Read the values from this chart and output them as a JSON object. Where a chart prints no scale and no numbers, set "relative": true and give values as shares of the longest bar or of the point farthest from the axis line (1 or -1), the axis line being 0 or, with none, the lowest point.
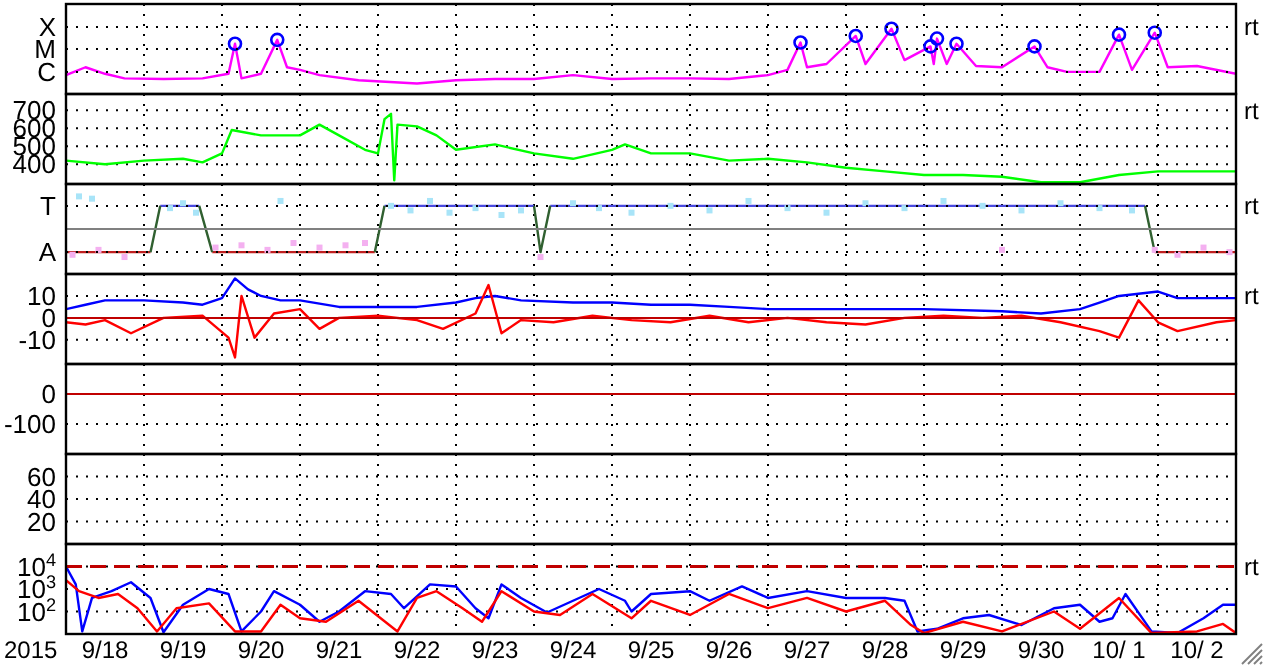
{
  "chart_data": [
    {
      "type": "line",
      "relative": true,
      "xlim": [
        "2015-09-18",
        "2015-10-03"
      ],
      "ref_lines": [
        {
          "axis": "y",
          "value": 0.34,
          "label": "C",
          "color": "#000000",
          "line_style": "dotted"
        },
        {
          "axis": "y",
          "value": 0.69,
          "label": "M",
          "color": "#000000",
          "line_style": "dotted"
        },
        {
          "axis": "y",
          "value": 1.03,
          "label": "X",
          "color": "#000000",
          "line_style": "dotted"
        }
      ],
      "xticks": [
        {
          "value": "2015-09-19",
          "label": null
        },
        {
          "value": "2015-09-20",
          "label": null
        },
        {
          "value": "2015-09-21",
          "label": null
        },
        {
          "value": "2015-09-22",
          "label": null
        },
        {
          "value": "2015-09-23",
          "label": null
        },
        {
          "value": "2015-09-24",
          "label": null
        },
        {
          "value": "2015-09-25",
          "label": null
        },
        {
          "value": "2015-09-26",
          "label": null
        },
        {
          "value": "2015-09-27",
          "label": null
        },
        {
          "value": "2015-09-28",
          "label": null
        },
        {
          "value": "2015-09-29",
          "label": null
        },
        {
          "value": "2015-09-30",
          "label": null
        },
        {
          "value": "2015-10-01",
          "label": null
        },
        {
          "value": "2015-10-02",
          "label": null
        }
      ],
      "tick_labels": "y",
      "grid": "x",
      "annotations": [
        "rt"
      ],
      "series": [
        {
          "color": "#ff00ff",
          "x": [
            "2015-09-18T00:00",
            "2015-09-18T06:00",
            "2015-09-18T12:00",
            "2015-09-18T18:00",
            "2015-09-19T06:00",
            "2015-09-19T18:00",
            "2015-09-20T02:00",
            "2015-09-20T04:00",
            "2015-09-20T06:00",
            "2015-09-20T12:00",
            "2015-09-20T17:00",
            "2015-09-20T20:00",
            "2015-09-21T00:00",
            "2015-09-21T06:00",
            "2015-09-21T18:00",
            "2015-09-22T12:00",
            "2015-09-23T00:00",
            "2015-09-23T12:00",
            "2015-09-24T00:00",
            "2015-09-24T12:00",
            "2015-09-25T00:00",
            "2015-09-25T12:00",
            "2015-09-26T00:00",
            "2015-09-26T12:00",
            "2015-09-27T00:00",
            "2015-09-27T06:00",
            "2015-09-27T10:00",
            "2015-09-27T12:00",
            "2015-09-27T18:00",
            "2015-09-28T03:00",
            "2015-09-28T06:00",
            "2015-09-28T14:00",
            "2015-09-28T18:00",
            "2015-09-29T02:00",
            "2015-09-29T03:00",
            "2015-09-29T04:00",
            "2015-09-29T07:00",
            "2015-09-29T10:00",
            "2015-09-29T16:00",
            "2015-09-30T00:00",
            "2015-09-30T10:00",
            "2015-09-30T14:00",
            "2015-09-30T20:00",
            "2015-10-01T06:00",
            "2015-10-01T12:00",
            "2015-10-01T16:00",
            "2015-10-01T23:00",
            "2015-10-02T03:00",
            "2015-10-02T12:00",
            "2015-10-03T00:00"
          ],
          "values": [
            0.29,
            0.41,
            0.31,
            0.24,
            0.23,
            0.24,
            0.31,
            0.77,
            0.24,
            0.31,
            0.83,
            0.41,
            0.37,
            0.29,
            0.21,
            0.16,
            0.21,
            0.23,
            0.23,
            0.29,
            0.23,
            0.24,
            0.24,
            0.23,
            0.29,
            0.37,
            0.79,
            0.41,
            0.46,
            0.89,
            0.46,
            1,
            0.52,
            0.73,
            0.46,
            0.85,
            0.46,
            0.77,
            0.43,
            0.41,
            0.73,
            0.41,
            0.34,
            0.34,
            0.91,
            0.37,
            0.94,
            0.41,
            0.43,
            0.31
          ]
        },
        {
          "type": "scatter",
          "marker": "circle",
          "color": "#0000ff",
          "x": [
            "2015-09-20T04:00",
            "2015-09-20T17:00",
            "2015-09-27T10:00",
            "2015-09-28T03:00",
            "2015-09-28T14:00",
            "2015-09-29T02:00",
            "2015-09-29T04:00",
            "2015-09-29T10:00",
            "2015-09-30T10:00",
            "2015-10-01T12:00",
            "2015-10-01T23:00"
          ],
          "values": [
            0.77,
            0.83,
            0.79,
            0.89,
            1,
            0.73,
            0.85,
            0.77,
            0.73,
            0.91,
            0.94
          ]
        }
      ]
    },
    {
      "type": "line",
      "xlim": [
        "2015-09-18",
        "2015-10-03"
      ],
      "ylim": [
        290,
        790
      ],
      "yticks": [
        400,
        500,
        600,
        700
      ],
      "xticks": [
        {
          "value": "2015-09-19",
          "label": null
        },
        {
          "value": "2015-09-20",
          "label": null
        },
        {
          "value": "2015-09-21",
          "label": null
        },
        {
          "value": "2015-09-22",
          "label": null
        },
        {
          "value": "2015-09-23",
          "label": null
        },
        {
          "value": "2015-09-24",
          "label": null
        },
        {
          "value": "2015-09-25",
          "label": null
        },
        {
          "value": "2015-09-26",
          "label": null
        },
        {
          "value": "2015-09-27",
          "label": null
        },
        {
          "value": "2015-09-28",
          "label": null
        },
        {
          "value": "2015-09-29",
          "label": null
        },
        {
          "value": "2015-09-30",
          "label": null
        },
        {
          "value": "2015-10-01",
          "label": null
        },
        {
          "value": "2015-10-02",
          "label": null
        }
      ],
      "tick_labels": "y",
      "grid": true,
      "annotations": [
        "rt"
      ],
      "series": [
        {
          "color": "#00ff00",
          "x": [
            "2015-09-18T00:00",
            "2015-09-18T12:00",
            "2015-09-19T00:00",
            "2015-09-19T12:00",
            "2015-09-19T18:00",
            "2015-09-20T00:00",
            "2015-09-20T03:00",
            "2015-09-20T12:00",
            "2015-09-21T00:00",
            "2015-09-21T06:00",
            "2015-09-21T12:00",
            "2015-09-21T20:00",
            "2015-09-22T00:00",
            "2015-09-22T02:00",
            "2015-09-22T04:00",
            "2015-09-22T05:00",
            "2015-09-22T06:00",
            "2015-09-22T12:00",
            "2015-09-22T18:00",
            "2015-09-23T00:00",
            "2015-09-23T12:00",
            "2015-09-24T00:00",
            "2015-09-24T12:00",
            "2015-09-25T00:00",
            "2015-09-25T04:00",
            "2015-09-25T12:00",
            "2015-09-26T00:00",
            "2015-09-26T12:00",
            "2015-09-27T00:00",
            "2015-09-27T12:00",
            "2015-09-28T00:00",
            "2015-09-28T12:00",
            "2015-09-29T00:00",
            "2015-09-29T12:00",
            "2015-09-30T00:00",
            "2015-09-30T12:00",
            "2015-10-01T00:00",
            "2015-10-01T12:00",
            "2015-10-02T00:00",
            "2015-10-02T12:00",
            "2015-10-03T00:00"
          ],
          "values": [
            420,
            400,
            420,
            430,
            410,
            460,
            590,
            560,
            560,
            620,
            560,
            480,
            460,
            650,
            680,
            310,
            620,
            610,
            560,
            480,
            510,
            460,
            430,
            480,
            510,
            460,
            460,
            420,
            430,
            410,
            380,
            360,
            340,
            340,
            330,
            300,
            300,
            340,
            360,
            360,
            360
          ]
        }
      ]
    },
    {
      "type": "line",
      "relative": true,
      "xlim": [
        "2015-09-18",
        "2015-10-03"
      ],
      "xticks": [
        {
          "value": "2015-09-19",
          "label": null
        },
        {
          "value": "2015-09-20",
          "label": null
        },
        {
          "value": "2015-09-21",
          "label": null
        },
        {
          "value": "2015-09-22",
          "label": null
        },
        {
          "value": "2015-09-23",
          "label": null
        },
        {
          "value": "2015-09-24",
          "label": null
        },
        {
          "value": "2015-09-25",
          "label": null
        },
        {
          "value": "2015-09-26",
          "label": null
        },
        {
          "value": "2015-09-27",
          "label": null
        },
        {
          "value": "2015-09-28",
          "label": null
        },
        {
          "value": "2015-09-29",
          "label": null
        },
        {
          "value": "2015-09-30",
          "label": null
        },
        {
          "value": "2015-10-01",
          "label": null
        },
        {
          "value": "2015-10-02",
          "label": null
        }
      ],
      "tick_labels": "y",
      "grid": "x",
      "annotations": [
        "rt"
      ],
      "ref_lines": [
        {
          "axis": "y",
          "value": 0,
          "label": null,
          "color": "#808080"
        },
        {
          "axis": "y",
          "value": -0.71,
          "label": "A",
          "color": "#000000",
          "line_style": "dotted"
        },
        {
          "axis": "y",
          "value": 0.71,
          "label": "T",
          "color": "#000000",
          "line_style": "dotted"
        }
      ],
      "series": [
        {
          "type": "scatter",
          "marker": "square",
          "color": "#a8e4f8",
          "x": [
            "2015-09-18T04:00",
            "2015-09-18T08:00",
            "2015-09-19T08:00",
            "2015-09-19T12:00",
            "2015-09-19T16:00",
            "2015-09-20T18:00",
            "2015-09-22T04:00",
            "2015-09-22T10:00",
            "2015-09-22T16:00",
            "2015-09-22T22:00",
            "2015-09-23T06:00",
            "2015-09-23T14:00",
            "2015-09-23T20:00",
            "2015-09-24T12:00",
            "2015-09-24T20:00",
            "2015-09-25T06:00",
            "2015-09-25T18:00",
            "2015-09-26T06:00",
            "2015-09-26T18:00",
            "2015-09-27T06:00",
            "2015-09-27T18:00",
            "2015-09-28T06:00",
            "2015-09-28T18:00",
            "2015-09-29T06:00",
            "2015-09-29T18:00",
            "2015-09-30T06:00",
            "2015-09-30T18:00",
            "2015-10-01T06:00",
            "2015-10-01T16:00"
          ],
          "values": [
            1,
            0.93,
            0.64,
            0.79,
            0.5,
            0.86,
            0.71,
            0.57,
            0.86,
            0.5,
            0.64,
            0.43,
            0.57,
            0.79,
            0.64,
            0.5,
            0.71,
            0.57,
            0.86,
            0.64,
            0.5,
            0.79,
            0.64,
            0.86,
            0.71,
            0.57,
            0.79,
            0.64,
            0.57
          ]
        },
        {
          "type": "scatter",
          "marker": "square",
          "color": "#f4b0f0",
          "x": [
            "2015-09-18T02:00",
            "2015-09-18T10:00",
            "2015-09-18T18:00",
            "2015-09-19T22:00",
            "2015-09-20T06:00",
            "2015-09-20T14:00",
            "2015-09-20T22:00",
            "2015-09-21T06:00",
            "2015-09-21T14:00",
            "2015-09-21T20:00",
            "2015-09-24T02:00",
            "2015-09-30T00:00",
            "2015-10-01T23:00",
            "2015-10-02T06:00",
            "2015-10-02T14:00",
            "2015-10-02T22:00"
          ],
          "values": [
            -0.79,
            -0.64,
            -0.86,
            -0.57,
            -0.5,
            -0.64,
            -0.43,
            -0.57,
            -0.5,
            -0.43,
            -0.86,
            -0.64,
            -0.64,
            -0.79,
            -0.57,
            -0.71
          ]
        },
        {
          "color": "#c02020",
          "x": [
            "2015-09-18T00:00",
            "2015-09-19T02:00",
            "2015-09-19T12:00",
            "2015-09-19T21:00",
            "2015-09-21T23:00",
            "2015-09-30T00:00",
            "2015-10-01T23:00",
            "2015-10-03T00:00"
          ],
          "values": [
            -0.71,
            -0.71,
            null,
            -0.71,
            -0.71,
            null,
            -0.71,
            -0.71
          ]
        },
        {
          "color": "#4a4ae0",
          "x": [
            "2015-09-19T05:00",
            "2015-09-19T17:00",
            "2015-09-20T12:00",
            "2015-09-22T02:00",
            "2015-09-24T00:00",
            "2015-09-24T03:00",
            "2015-09-24T05:00",
            "2015-10-01T20:00"
          ],
          "values": [
            0.71,
            0.71,
            null,
            0.71,
            0.71,
            null,
            0.71,
            0.71
          ]
        },
        {
          "color": "#306030",
          "x": [
            "2015-09-19T02:00",
            "2015-09-19T05:00",
            "2015-09-19T10:00",
            "2015-09-19T17:00",
            "2015-09-19T21:00",
            "2015-09-20T12:00",
            "2015-09-21T23:00",
            "2015-09-22T02:00",
            "2015-09-23T00:00",
            "2015-09-24T00:00",
            "2015-09-24T02:00",
            "2015-09-24T05:00",
            "2015-09-30T00:00",
            "2015-10-01T20:00",
            "2015-10-01T23:00"
          ],
          "values": [
            -0.71,
            0.71,
            null,
            0.71,
            -0.71,
            null,
            -0.71,
            0.71,
            null,
            0.71,
            -0.71,
            0.71,
            null,
            0.71,
            -0.71
          ]
        }
      ]
    },
    {
      "type": "line",
      "xlim": [
        "2015-09-18",
        "2015-10-03"
      ],
      "ylim": [
        -21,
        20
      ],
      "yticks": [
        -10,
        0,
        10
      ],
      "xticks": [
        {
          "value": "2015-09-19",
          "label": null
        },
        {
          "value": "2015-09-20",
          "label": null
        },
        {
          "value": "2015-09-21",
          "label": null
        },
        {
          "value": "2015-09-22",
          "label": null
        },
        {
          "value": "2015-09-23",
          "label": null
        },
        {
          "value": "2015-09-24",
          "label": null
        },
        {
          "value": "2015-09-25",
          "label": null
        },
        {
          "value": "2015-09-26",
          "label": null
        },
        {
          "value": "2015-09-27",
          "label": null
        },
        {
          "value": "2015-09-28",
          "label": null
        },
        {
          "value": "2015-09-29",
          "label": null
        },
        {
          "value": "2015-09-30",
          "label": null
        },
        {
          "value": "2015-10-01",
          "label": null
        },
        {
          "value": "2015-10-02",
          "label": null
        }
      ],
      "tick_labels": "y",
      "grid": true,
      "annotations": [
        "rt"
      ],
      "ref_lines": [
        {
          "axis": "y",
          "value": 0,
          "label": null,
          "color": "#c00000"
        }
      ],
      "series": [
        {
          "color": "#0000ff",
          "x": [
            "2015-09-18T00:00",
            "2015-09-18T06:00",
            "2015-09-18T12:00",
            "2015-09-19T00:00",
            "2015-09-19T12:00",
            "2015-09-19T18:00",
            "2015-09-20T00:00",
            "2015-09-20T04:00",
            "2015-09-20T08:00",
            "2015-09-20T12:00",
            "2015-09-20T18:00",
            "2015-09-21T00:00",
            "2015-09-21T12:00",
            "2015-09-22T00:00",
            "2015-09-22T12:00",
            "2015-09-23T00:00",
            "2015-09-23T06:00",
            "2015-09-23T12:00",
            "2015-09-23T20:00",
            "2015-09-24T12:00",
            "2015-09-25T00:00",
            "2015-09-25T12:00",
            "2015-09-26T00:00",
            "2015-09-26T12:00",
            "2015-09-27T00:00",
            "2015-09-28T00:00",
            "2015-09-29T00:00",
            "2015-09-30T00:00",
            "2015-09-30T12:00",
            "2015-10-01T00:00",
            "2015-10-01T06:00",
            "2015-10-01T12:00",
            "2015-10-02T00:00",
            "2015-10-02T06:00",
            "2015-10-03T00:00"
          ],
          "values": [
            4,
            6,
            8,
            8,
            7,
            6,
            9,
            18,
            13,
            10,
            8,
            8,
            5,
            5,
            5,
            7,
            9,
            10,
            8,
            7,
            7,
            6,
            6,
            5,
            4,
            4,
            4,
            3,
            2,
            4,
            7,
            10,
            12,
            9,
            9
          ]
        },
        {
          "color": "#ff0000",
          "x": [
            "2015-09-18T00:00",
            "2015-09-18T06:00",
            "2015-09-18T12:00",
            "2015-09-18T20:00",
            "2015-09-19T06:00",
            "2015-09-19T18:00",
            "2015-09-20T02:00",
            "2015-09-20T04:00",
            "2015-09-20T06:00",
            "2015-09-20T10:00",
            "2015-09-20T16:00",
            "2015-09-21T00:00",
            "2015-09-21T06:00",
            "2015-09-21T12:00",
            "2015-09-22T00:00",
            "2015-09-22T12:00",
            "2015-09-22T20:00",
            "2015-09-23T06:00",
            "2015-09-23T10:00",
            "2015-09-23T14:00",
            "2015-09-23T20:00",
            "2015-09-24T06:00",
            "2015-09-24T18:00",
            "2015-09-25T06:00",
            "2015-09-25T18:00",
            "2015-09-26T06:00",
            "2015-09-26T18:00",
            "2015-09-27T06:00",
            "2015-09-27T18:00",
            "2015-09-28T06:00",
            "2015-09-28T18:00",
            "2015-09-29T06:00",
            "2015-09-29T18:00",
            "2015-09-30T06:00",
            "2015-09-30T18:00",
            "2015-10-01T06:00",
            "2015-10-01T12:00",
            "2015-10-01T18:00",
            "2015-10-02T00:00",
            "2015-10-02T06:00",
            "2015-10-02T18:00",
            "2015-10-03T00:00"
          ],
          "values": [
            -2,
            -3,
            -1,
            -7,
            0,
            1,
            -9,
            -18,
            10,
            -9,
            2,
            4,
            -5,
            0,
            1,
            -1,
            -5,
            2,
            15,
            -7,
            -1,
            -2,
            1,
            -1,
            -2,
            1,
            -2,
            0,
            -2,
            -3,
            0,
            1,
            0,
            1,
            -2,
            -6,
            -9,
            8,
            -2,
            -6,
            -2,
            -1
          ]
        }
      ]
    },
    {
      "type": "line",
      "xlim": [
        "2015-09-18",
        "2015-10-03"
      ],
      "ylim": [
        -200,
        100
      ],
      "yticks": [
        -100,
        0
      ],
      "xticks": [
        {
          "value": "2015-09-19",
          "label": null
        },
        {
          "value": "2015-09-20",
          "label": null
        },
        {
          "value": "2015-09-21",
          "label": null
        },
        {
          "value": "2015-09-22",
          "label": null
        },
        {
          "value": "2015-09-23",
          "label": null
        },
        {
          "value": "2015-09-24",
          "label": null
        },
        {
          "value": "2015-09-25",
          "label": null
        },
        {
          "value": "2015-09-26",
          "label": null
        },
        {
          "value": "2015-09-27",
          "label": null
        },
        {
          "value": "2015-09-28",
          "label": null
        },
        {
          "value": "2015-09-29",
          "label": null
        },
        {
          "value": "2015-09-30",
          "label": null
        },
        {
          "value": "2015-10-01",
          "label": null
        },
        {
          "value": "2015-10-02",
          "label": null
        }
      ],
      "tick_labels": "y",
      "grid": true,
      "ref_lines": [
        {
          "axis": "y",
          "value": 0,
          "label": null,
          "color": "#c00000"
        }
      ]
    },
    {
      "type": "line",
      "xlim": [
        "2015-09-18",
        "2015-10-03"
      ],
      "ylim": [
        0,
        80
      ],
      "yticks": [
        20,
        40,
        60
      ],
      "xticks": [
        {
          "value": "2015-09-19",
          "label": null
        },
        {
          "value": "2015-09-20",
          "label": null
        },
        {
          "value": "2015-09-21",
          "label": null
        },
        {
          "value": "2015-09-22",
          "label": null
        },
        {
          "value": "2015-09-23",
          "label": null
        },
        {
          "value": "2015-09-24",
          "label": null
        },
        {
          "value": "2015-09-25",
          "label": null
        },
        {
          "value": "2015-09-26",
          "label": null
        },
        {
          "value": "2015-09-27",
          "label": null
        },
        {
          "value": "2015-09-28",
          "label": null
        },
        {
          "value": "2015-09-29",
          "label": null
        },
        {
          "value": "2015-09-30",
          "label": null
        },
        {
          "value": "2015-10-01",
          "label": null
        },
        {
          "value": "2015-10-02",
          "label": null
        }
      ],
      "tick_labels": "y",
      "grid": true
    },
    {
      "type": "line",
      "log": "y",
      "xlim": [
        "2015-09-18",
        "2015-10-03"
      ],
      "ylim": [
        10,
        100000
      ],
      "yticks": [
        {
          "value": 100,
          "label": "10$^{2}$"
        },
        {
          "value": 1000,
          "label": "10$^{3}$"
        },
        {
          "value": 10000,
          "label": "10$^{4}$"
        }
      ],
      "xticks": [
        {
          "value": "2015-09-18T12:00",
          "label": "9/18"
        },
        {
          "value": "2015-09-19",
          "label": null
        },
        {
          "value": "2015-09-19T12:00",
          "label": "9/19"
        },
        {
          "value": "2015-09-20",
          "label": null
        },
        {
          "value": "2015-09-20T12:00",
          "label": "9/20"
        },
        {
          "value": "2015-09-21",
          "label": null
        },
        {
          "value": "2015-09-21T12:00",
          "label": "9/21"
        },
        {
          "value": "2015-09-22",
          "label": null
        },
        {
          "value": "2015-09-22T12:00",
          "label": "9/22"
        },
        {
          "value": "2015-09-23",
          "label": null
        },
        {
          "value": "2015-09-23T12:00",
          "label": "9/23"
        },
        {
          "value": "2015-09-24",
          "label": null
        },
        {
          "value": "2015-09-24T12:00",
          "label": "9/24"
        },
        {
          "value": "2015-09-25",
          "label": null
        },
        {
          "value": "2015-09-25T12:00",
          "label": "9/25"
        },
        {
          "value": "2015-09-26",
          "label": null
        },
        {
          "value": "2015-09-26T12:00",
          "label": "9/26"
        },
        {
          "value": "2015-09-27",
          "label": null
        },
        {
          "value": "2015-09-27T12:00",
          "label": "9/27"
        },
        {
          "value": "2015-09-28",
          "label": null
        },
        {
          "value": "2015-09-28T12:00",
          "label": "9/28"
        },
        {
          "value": "2015-09-29",
          "label": null
        },
        {
          "value": "2015-09-29T12:00",
          "label": "9/29"
        },
        {
          "value": "2015-09-30",
          "label": null
        },
        {
          "value": "2015-09-30T12:00",
          "label": "9/30"
        },
        {
          "value": "2015-10-01",
          "label": null
        },
        {
          "value": "2015-10-01T12:00",
          "label": "10/ 1"
        },
        {
          "value": "2015-10-02",
          "label": null
        },
        {
          "value": "2015-10-02T12:00",
          "label": "10/ 2"
        }
      ],
      "grid": true,
      "xlabel": "2015",
      "annotations": [
        "rt"
      ],
      "ref_lines": [
        {
          "axis": "y",
          "value": 10000,
          "label": null,
          "color": "#c00000",
          "line_style": "dashed"
        }
      ],
      "series": [
        {
          "color": "#0000ff",
          "x": [
            "2015-09-18T00:00",
            "2015-09-18T03:00",
            "2015-09-18T05:00",
            "2015-09-18T08:00",
            "2015-09-18T14:00",
            "2015-09-18T20:00",
            "2015-09-19T02:00",
            "2015-09-19T06:00",
            "2015-09-19T12:00",
            "2015-09-19T20:00",
            "2015-09-20T02:00",
            "2015-09-20T06:00",
            "2015-09-20T12:00",
            "2015-09-20T16:00",
            "2015-09-21T00:00",
            "2015-09-21T06:00",
            "2015-09-21T12:00",
            "2015-09-21T20:00",
            "2015-09-22T04:00",
            "2015-09-22T08:00",
            "2015-09-22T16:00",
            "2015-09-23T00:00",
            "2015-09-23T06:00",
            "2015-09-23T10:00",
            "2015-09-23T14:00",
            "2015-09-23T20:00",
            "2015-09-24T04:00",
            "2015-09-24T12:00",
            "2015-09-24T20:00",
            "2015-09-25T04:00",
            "2015-09-25T06:00",
            "2015-09-25T12:00",
            "2015-09-26T00:00",
            "2015-09-26T06:00",
            "2015-09-26T16:00",
            "2015-09-27T00:00",
            "2015-09-27T12:00",
            "2015-09-28T00:00",
            "2015-09-28T12:00",
            "2015-09-28T18:00",
            "2015-09-28T22:00",
            "2015-09-29T04:00",
            "2015-09-29T12:00",
            "2015-09-29T20:00",
            "2015-09-30T06:00",
            "2015-09-30T16:00",
            "2015-10-01T00:00",
            "2015-10-01T06:00",
            "2015-10-01T10:00",
            "2015-10-01T14:00",
            "2015-10-01T22:00",
            "2015-10-02T06:00",
            "2015-10-02T14:00",
            "2015-10-02T20:00",
            "2015-10-03T00:00"
          ],
          "values": [
            10000,
            1600,
            13,
            400,
            800,
            2000,
            400,
            12,
            200,
            1000,
            600,
            13,
            100,
            800,
            200,
            35,
            100,
            800,
            600,
            140,
            1600,
            1300,
            140,
            50,
            1600,
            400,
            90,
            300,
            1000,
            300,
            100,
            600,
            800,
            300,
            1300,
            400,
            800,
            400,
            400,
            300,
            13,
            17,
            50,
            70,
            25,
            140,
            200,
            35,
            50,
            600,
            13,
            11,
            50,
            200,
            200
          ]
        },
        {
          "color": "#ff0000",
          "x": [
            "2015-09-18T00:00",
            "2015-09-18T04:00",
            "2015-09-18T10:00",
            "2015-09-18T16:00",
            "2015-09-18T22:00",
            "2015-09-19T04:00",
            "2015-09-19T10:00",
            "2015-09-19T20:00",
            "2015-09-20T04:00",
            "2015-09-20T12:00",
            "2015-09-20T18:00",
            "2015-09-21T00:00",
            "2015-09-21T08:00",
            "2015-09-21T18:00",
            "2015-09-22T06:00",
            "2015-09-22T12:00",
            "2015-09-22T18:00",
            "2015-09-23T02:00",
            "2015-09-23T08:00",
            "2015-09-23T14:00",
            "2015-09-24T00:00",
            "2015-09-24T08:00",
            "2015-09-24T18:00",
            "2015-09-25T06:00",
            "2015-09-25T12:00",
            "2015-09-26T00:00",
            "2015-09-26T12:00",
            "2015-09-27T00:00",
            "2015-09-27T12:00",
            "2015-09-28T00:00",
            "2015-09-28T12:00",
            "2015-09-28T20:00",
            "2015-09-29T00:00",
            "2015-09-29T12:00",
            "2015-09-30T00:00",
            "2015-09-30T16:00",
            "2015-10-01T00:00",
            "2015-10-01T12:00",
            "2015-10-01T22:00",
            "2015-10-02T12:00",
            "2015-10-02T20:00",
            "2015-10-03T00:00"
          ],
          "values": [
            2500,
            800,
            400,
            600,
            140,
            13,
            140,
            230,
            13,
            13,
            200,
            50,
            35,
            300,
            13,
            400,
            800,
            140,
            35,
            800,
            100,
            70,
            600,
            50,
            300,
            70,
            600,
            140,
            400,
            100,
            300,
            25,
            11,
            35,
            13,
            100,
            17,
            400,
            11,
            13,
            28,
            11
          ]
        }
      ]
    }
  ]
}
